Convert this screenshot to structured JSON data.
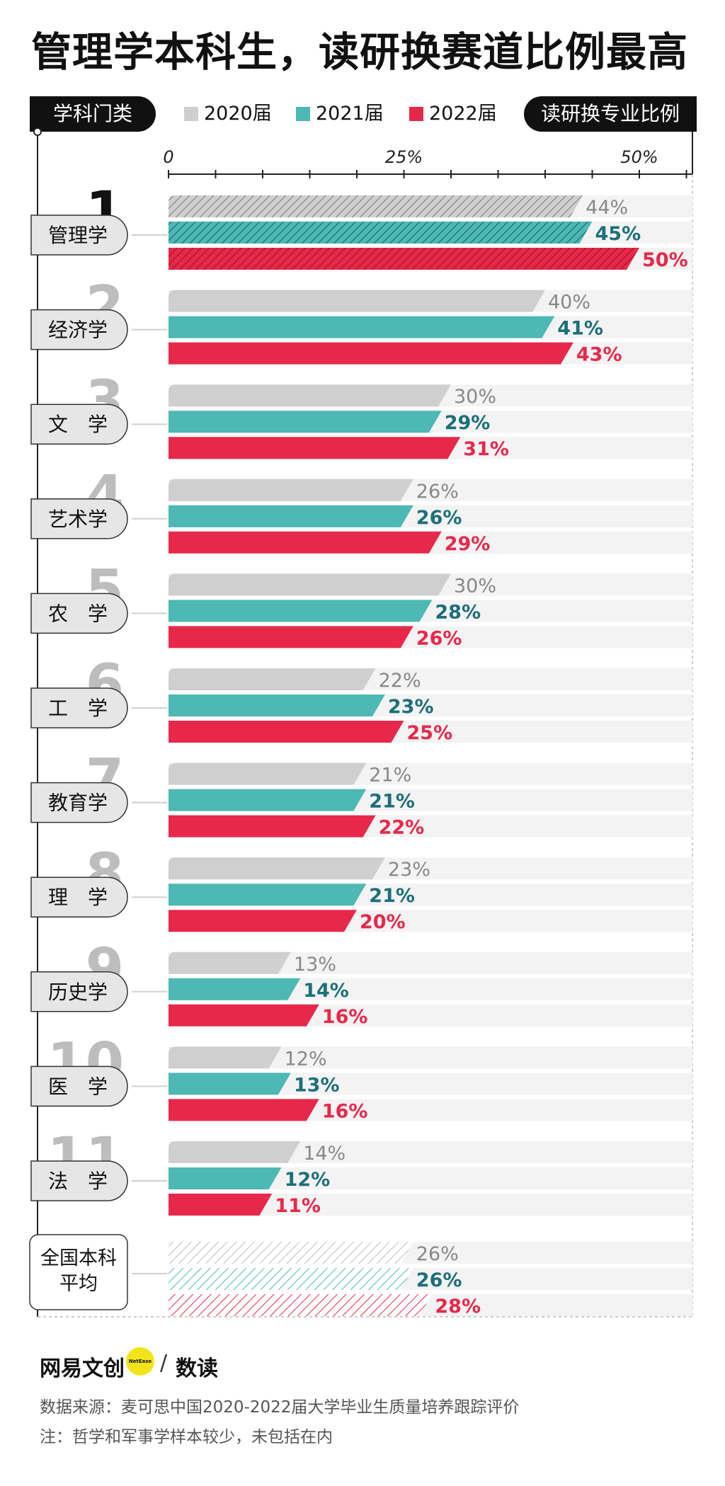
{
  "title": "管理学本科生，读研换赛道比例最高",
  "header": {
    "left_label": "学科门类",
    "right_label": "读研换专业比例"
  },
  "legend": [
    {
      "name": "2020届",
      "color": "#cfcfcf"
    },
    {
      "name": "2021届",
      "color": "#4db8b4"
    },
    {
      "name": "2022届",
      "color": "#e8284a"
    }
  ],
  "chart_data": {
    "type": "bar",
    "orientation": "horizontal",
    "x_ticks": [
      "0",
      "25%",
      "50%"
    ],
    "xlim": [
      0,
      55
    ],
    "series_names": [
      "2020届",
      "2021届",
      "2022届"
    ],
    "series_colors": [
      "#cfcfcf",
      "#4db8b4",
      "#e8284a"
    ],
    "label_colors": [
      "#888888",
      "#1e6f7a",
      "#e8284a"
    ],
    "categories": [
      {
        "rank": "1",
        "name": "管理学",
        "values": [
          44,
          45,
          50
        ],
        "labels": [
          "44%",
          "45%",
          "50%"
        ],
        "hatched": true
      },
      {
        "rank": "2",
        "name": "经济学",
        "values": [
          40,
          41,
          43
        ],
        "labels": [
          "40%",
          "41%",
          "43%"
        ]
      },
      {
        "rank": "3",
        "name": "文　学",
        "values": [
          30,
          29,
          31
        ],
        "labels": [
          "30%",
          "29%",
          "31%"
        ]
      },
      {
        "rank": "4",
        "name": "艺术学",
        "values": [
          26,
          26,
          29
        ],
        "labels": [
          "26%",
          "26%",
          "29%"
        ]
      },
      {
        "rank": "5",
        "name": "农　学",
        "values": [
          30,
          28,
          26
        ],
        "labels": [
          "30%",
          "28%",
          "26%"
        ]
      },
      {
        "rank": "6",
        "name": "工　学",
        "values": [
          22,
          23,
          25
        ],
        "labels": [
          "22%",
          "23%",
          "25%"
        ]
      },
      {
        "rank": "7",
        "name": "教育学",
        "values": [
          21,
          21,
          22
        ],
        "labels": [
          "21%",
          "21%",
          "22%"
        ]
      },
      {
        "rank": "8",
        "name": "理　学",
        "values": [
          23,
          21,
          20
        ],
        "labels": [
          "23%",
          "21%",
          "20%"
        ]
      },
      {
        "rank": "9",
        "name": "历史学",
        "values": [
          13,
          14,
          16
        ],
        "labels": [
          "13%",
          "14%",
          "16%"
        ]
      },
      {
        "rank": "10",
        "name": "医　学",
        "values": [
          12,
          13,
          16
        ],
        "labels": [
          "12%",
          "13%",
          "16%"
        ]
      },
      {
        "rank": "11",
        "name": "法　学",
        "values": [
          14,
          12,
          11
        ],
        "labels": [
          "14%",
          "12%",
          "11%"
        ]
      }
    ],
    "average": {
      "name_line1": "全国本科",
      "name_line2": "平均",
      "values": [
        26,
        26,
        28
      ],
      "labels": [
        "26%",
        "26%",
        "28%"
      ]
    }
  },
  "footer": {
    "brand": "网易文创",
    "brand_badge": "NetEase",
    "separator": "/",
    "brand2": "数读",
    "source": "数据来源：麦可思中国2020-2022届大学毕业生质量培养跟踪评价",
    "note": "注：哲学和军事学样本较少，未包括在内"
  }
}
